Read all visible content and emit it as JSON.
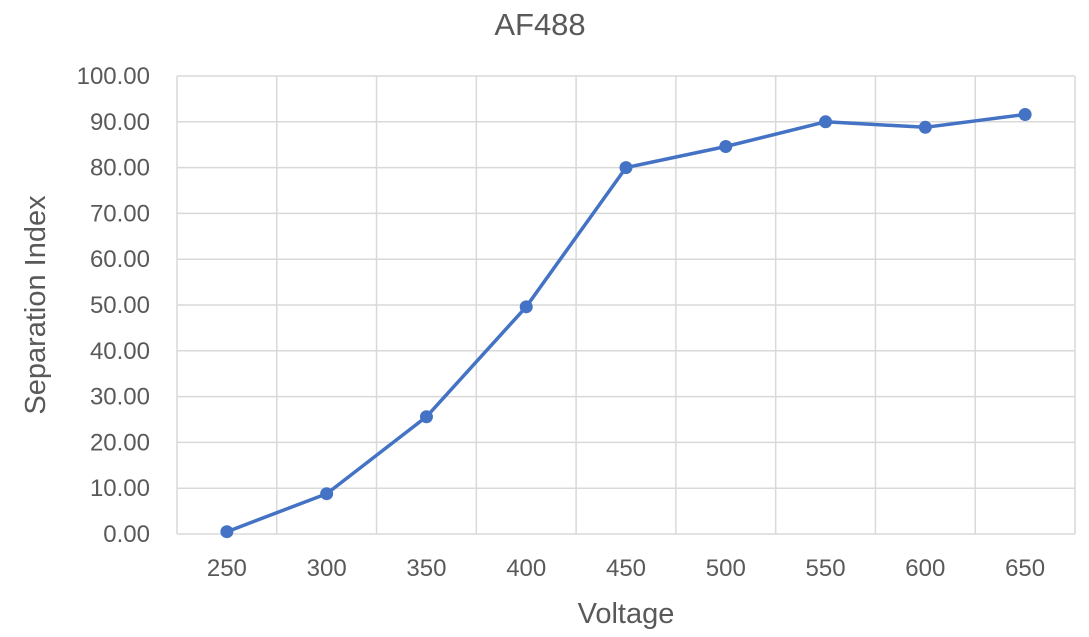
{
  "chart_data": {
    "type": "line",
    "title": "AF488",
    "xlabel": "Voltage",
    "ylabel": "Separation Index",
    "x": [
      250,
      300,
      350,
      400,
      450,
      500,
      550,
      600,
      650
    ],
    "series": [
      {
        "values": [
          0.5,
          8.8,
          25.6,
          49.6,
          80.0,
          84.6,
          90.0,
          88.8,
          91.6
        ],
        "color": "#4472c4"
      }
    ],
    "ylim": [
      0,
      100
    ],
    "y_ticks": [
      "0.00",
      "10.00",
      "20.00",
      "30.00",
      "40.00",
      "50.00",
      "60.00",
      "70.00",
      "80.00",
      "90.00",
      "100.00"
    ],
    "x_ticks": [
      "250",
      "300",
      "350",
      "400",
      "450",
      "500",
      "550",
      "600",
      "650"
    ],
    "grid": true,
    "legend": "none",
    "colors": {
      "text": "#595959",
      "grid": "#d9d9d9",
      "series": "#4472c4"
    }
  }
}
